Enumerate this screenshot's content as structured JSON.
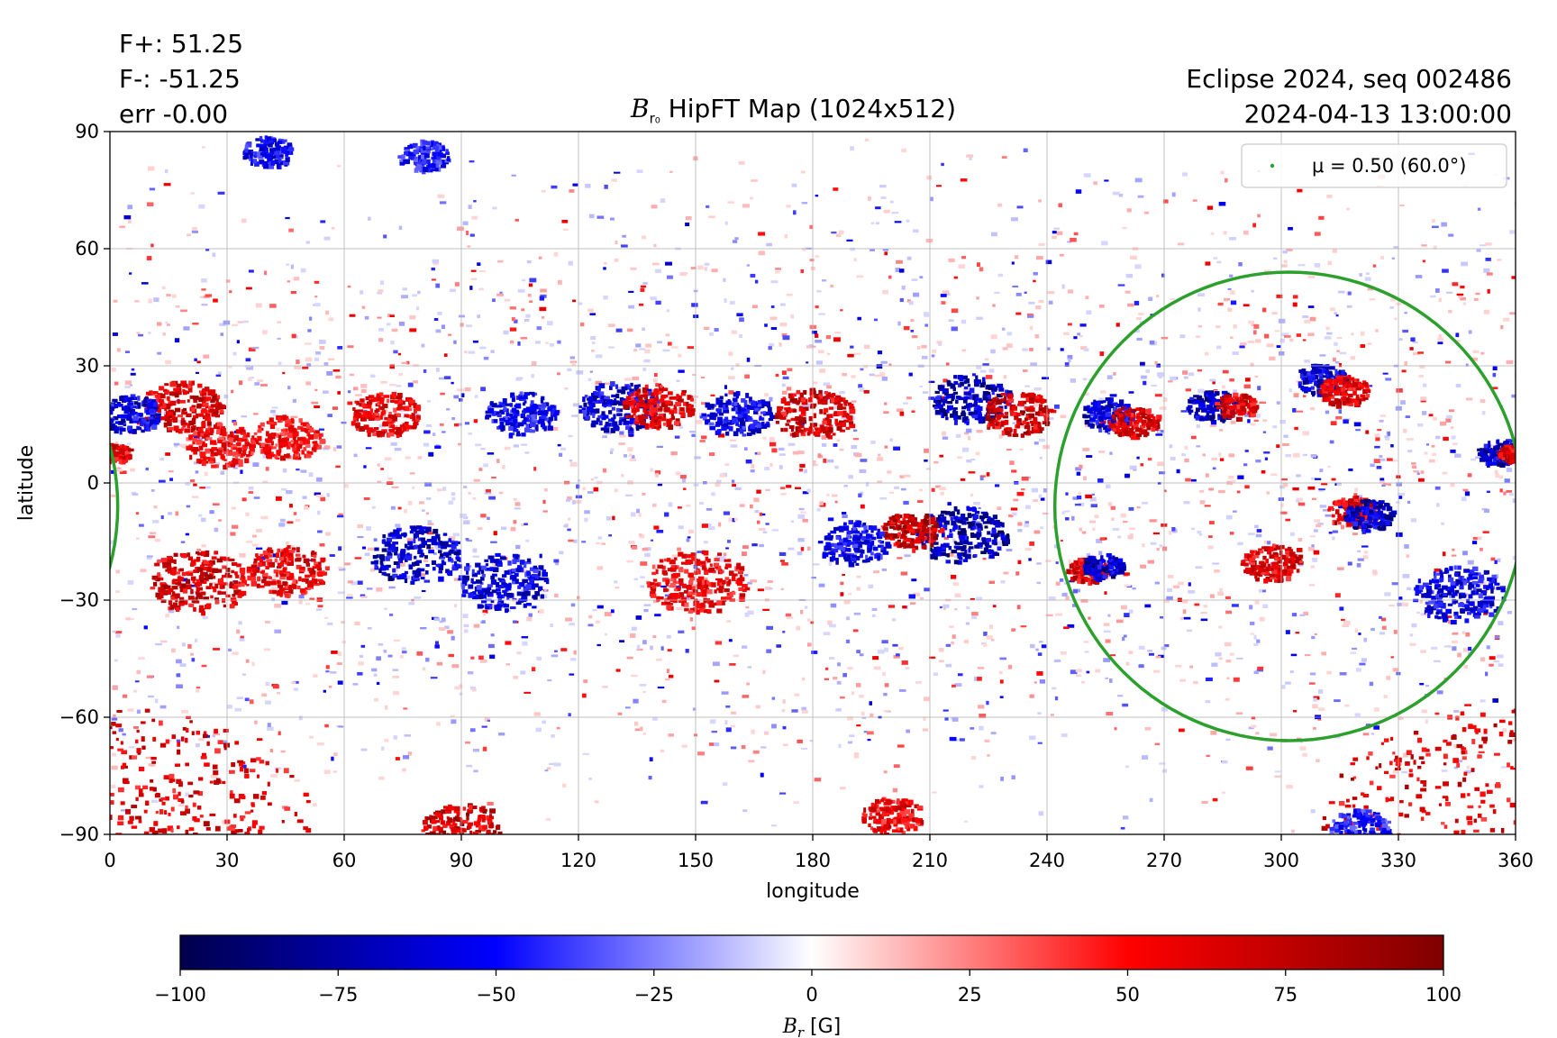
{
  "chart_data": {
    "type": "heatmap",
    "title": "HipFT Map (1024x512)",
    "title_symbol": "B",
    "title_symbol_sub": "r₀",
    "annotations": {
      "flux_positive": "F+: 51.25",
      "flux_negative": "F-: -51.25",
      "error": "err -0.00",
      "observation": "Eclipse 2024, seq 002486",
      "datetime": "2024-04-13 13:00:00"
    },
    "xlabel": "longitude",
    "ylabel": "latitude",
    "xlim": [
      0,
      360
    ],
    "ylim": [
      -90,
      90
    ],
    "xticks": [
      0,
      30,
      60,
      90,
      120,
      150,
      180,
      210,
      240,
      270,
      300,
      330,
      360
    ],
    "yticks": [
      -90,
      -60,
      -30,
      0,
      30,
      60,
      90
    ],
    "ytick_labels": [
      "−90",
      "−60",
      "−30",
      "0",
      "30",
      "60",
      "90"
    ],
    "grid": true,
    "colormap": "seismic",
    "colorbar": {
      "label": "B_r [G]",
      "label_symbol": "B",
      "label_sub": "r",
      "label_unit": " [G]",
      "range": [
        -100,
        100
      ],
      "ticks": [
        -100,
        -75,
        -50,
        -25,
        0,
        25,
        50,
        75,
        100
      ],
      "tick_labels": [
        "−100",
        "−75",
        "−50",
        "−25",
        "0",
        "25",
        "50",
        "75",
        "100"
      ],
      "colors": [
        "#00004c",
        "#0000ff",
        "#ffffff",
        "#ff0000",
        "#800000"
      ]
    },
    "legend": {
      "placement": "top-right",
      "label": "μ = 0.50 (60.0°)",
      "color": "#2ca02c"
    },
    "disk_contour": {
      "center_lon": 302,
      "center_lat": -6,
      "lon_half_width": 60,
      "lat_range": [
        -66,
        54
      ],
      "color": "#2ca02c"
    },
    "active_regions": [
      {
        "lon": 218,
        "lat": -13,
        "field": -95,
        "spread": 9
      },
      {
        "lon": 205,
        "lat": -12,
        "field": 95,
        "spread": 6
      },
      {
        "lon": 220,
        "lat": 22,
        "field": -90,
        "spread": 8
      },
      {
        "lon": 232,
        "lat": 18,
        "field": 90,
        "spread": 7
      },
      {
        "lon": 22,
        "lat": -25,
        "field": 85,
        "spread": 10
      },
      {
        "lon": 45,
        "lat": -22,
        "field": 75,
        "spread": 8
      },
      {
        "lon": 78,
        "lat": -18,
        "field": -85,
        "spread": 9
      },
      {
        "lon": 100,
        "lat": -25,
        "field": -75,
        "spread": 9
      },
      {
        "lon": 18,
        "lat": 20,
        "field": 85,
        "spread": 8
      },
      {
        "lon": 28,
        "lat": 10,
        "field": 70,
        "spread": 7
      },
      {
        "lon": 45,
        "lat": 12,
        "field": 65,
        "spread": 7
      },
      {
        "lon": 70,
        "lat": 18,
        "field": 75,
        "spread": 7
      },
      {
        "lon": 5,
        "lat": 18,
        "field": -80,
        "spread": 6
      },
      {
        "lon": 105,
        "lat": 18,
        "field": -70,
        "spread": 7
      },
      {
        "lon": 130,
        "lat": 20,
        "field": -80,
        "spread": 8
      },
      {
        "lon": 140,
        "lat": 20,
        "field": 80,
        "spread": 7
      },
      {
        "lon": 160,
        "lat": 18,
        "field": -70,
        "spread": 7
      },
      {
        "lon": 180,
        "lat": 18,
        "field": 85,
        "spread": 8
      },
      {
        "lon": 150,
        "lat": -25,
        "field": 70,
        "spread": 10
      },
      {
        "lon": 190,
        "lat": -15,
        "field": -70,
        "spread": 7
      },
      {
        "lon": 255,
        "lat": 18,
        "field": -80,
        "spread": 5
      },
      {
        "lon": 262,
        "lat": 16,
        "field": 85,
        "spread": 5
      },
      {
        "lon": 282,
        "lat": 20,
        "field": -90,
        "spread": 5
      },
      {
        "lon": 288,
        "lat": 20,
        "field": 80,
        "spread": 4
      },
      {
        "lon": 310,
        "lat": 27,
        "field": -85,
        "spread": 5
      },
      {
        "lon": 316,
        "lat": 24,
        "field": 80,
        "spread": 5
      },
      {
        "lon": 318,
        "lat": -7,
        "field": 85,
        "spread": 5
      },
      {
        "lon": 322,
        "lat": -8,
        "field": -90,
        "spread": 5
      },
      {
        "lon": 250,
        "lat": -22,
        "field": 85,
        "spread": 4
      },
      {
        "lon": 254,
        "lat": -21,
        "field": -90,
        "spread": 4
      },
      {
        "lon": 297,
        "lat": -20,
        "field": 80,
        "spread": 6
      },
      {
        "lon": 345,
        "lat": -28,
        "field": -75,
        "spread": 9
      },
      {
        "lon": 355,
        "lat": 8,
        "field": -85,
        "spread": 4
      },
      {
        "lon": 359,
        "lat": 8,
        "field": 85,
        "spread": 3
      },
      {
        "lon": 1,
        "lat": 8,
        "field": 80,
        "spread": 3
      },
      {
        "lon": 40,
        "lat": 85,
        "field": -70,
        "spread": 5
      },
      {
        "lon": 80,
        "lat": 84,
        "field": -60,
        "spread": 5
      },
      {
        "lon": 90,
        "lat": -88,
        "field": 90,
        "spread": 8
      },
      {
        "lon": 200,
        "lat": -85,
        "field": 75,
        "spread": 6
      },
      {
        "lon": 0,
        "lat": -89,
        "field": 80,
        "spread": 40
      },
      {
        "lon": 360,
        "lat": -89,
        "field": 80,
        "spread": 40
      },
      {
        "lon": 320,
        "lat": -88,
        "field": -60,
        "spread": 6
      }
    ]
  }
}
